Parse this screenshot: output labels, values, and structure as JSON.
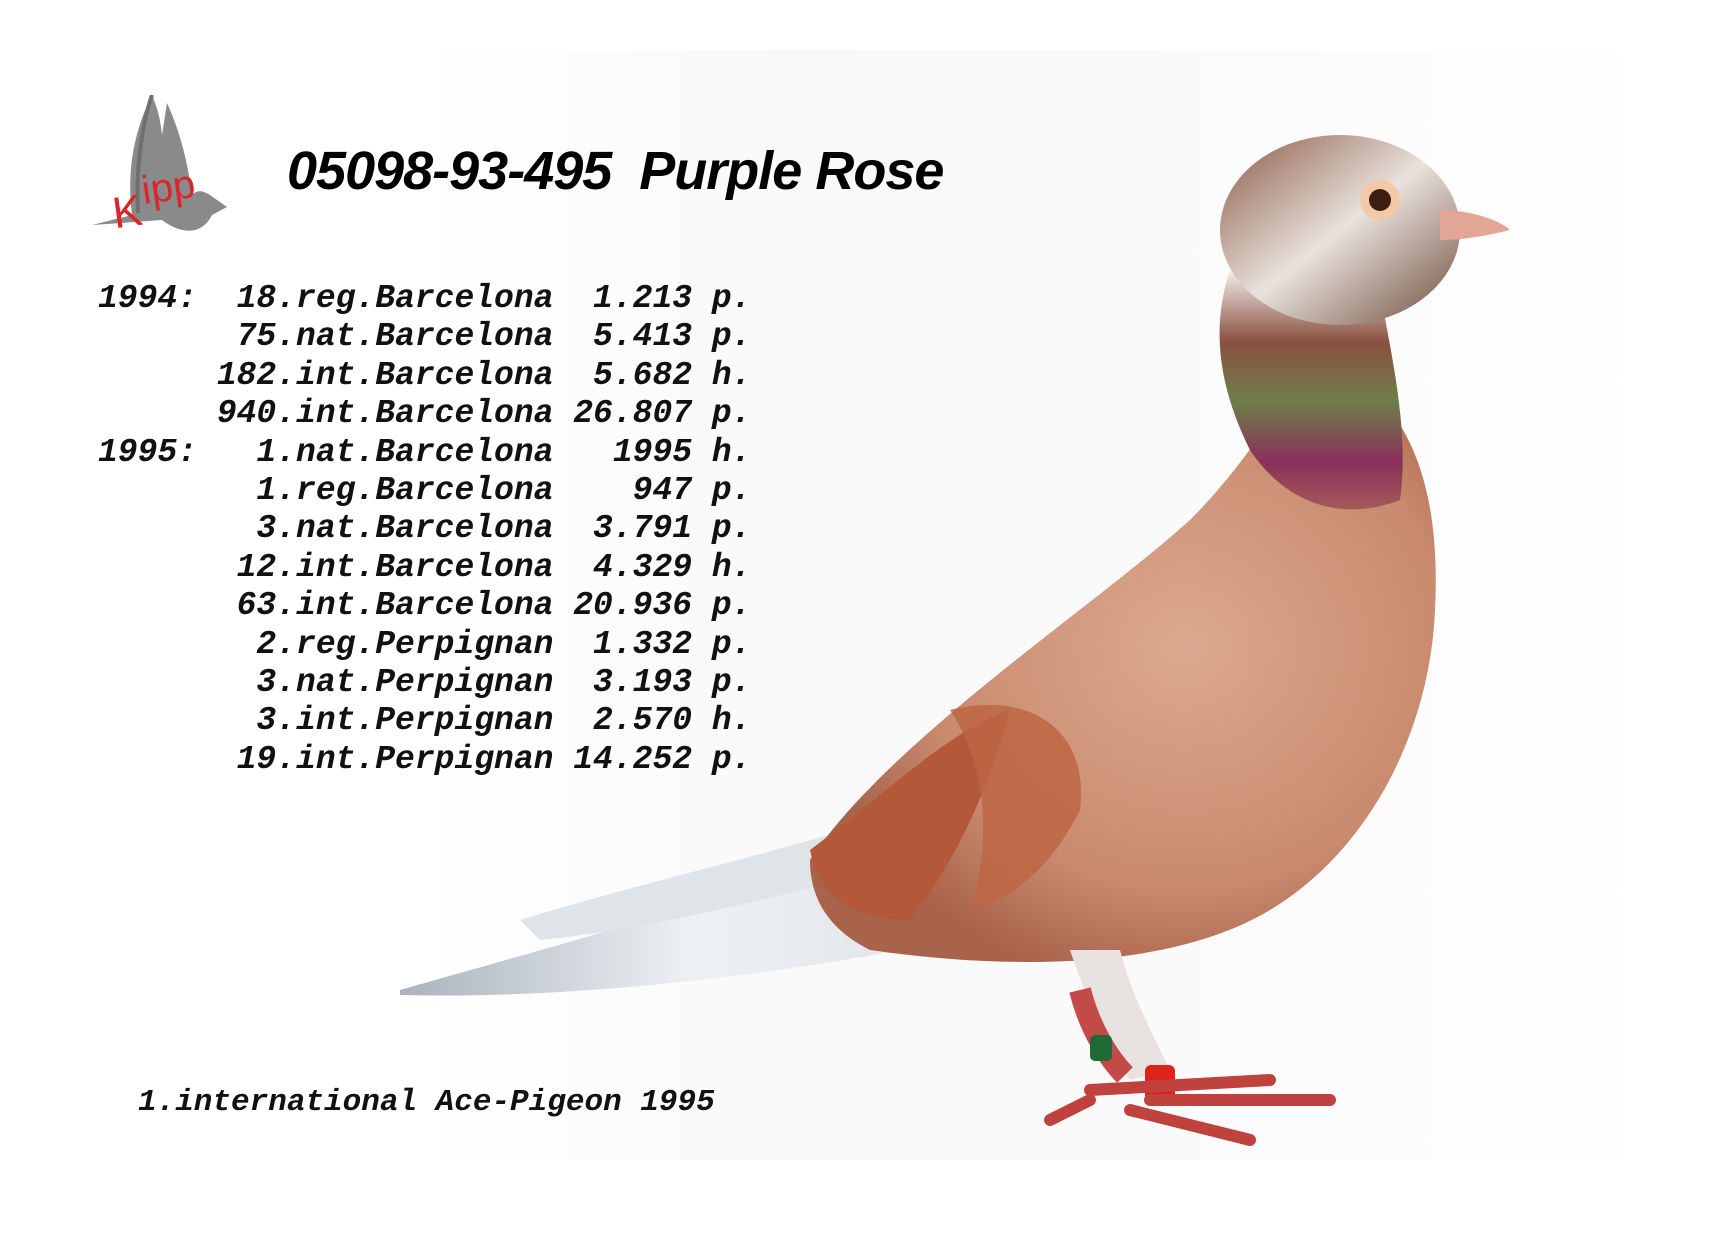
{
  "logo": {
    "text": "Kipp",
    "colors": {
      "bird": "#8a8a8a",
      "letters": "#d9252b"
    }
  },
  "title": "05098-93-495  Purple Rose",
  "results": [
    {
      "year": "1994:",
      "placing": "18.reg.Barcelona",
      "count": "1.213",
      "unit": "p."
    },
    {
      "year": "",
      "placing": "75.nat.Barcelona",
      "count": "5.413",
      "unit": "p."
    },
    {
      "year": "",
      "placing": "182.int.Barcelona",
      "count": "5.682",
      "unit": "h."
    },
    {
      "year": "",
      "placing": "940.int.Barcelona",
      "count": "26.807",
      "unit": "p."
    },
    {
      "year": "1995:",
      "placing": "1.nat.Barcelona",
      "count": "1995",
      "unit": "h."
    },
    {
      "year": "",
      "placing": "1.reg.Barcelona",
      "count": "947",
      "unit": "p."
    },
    {
      "year": "",
      "placing": "3.nat.Barcelona",
      "count": "3.791",
      "unit": "p."
    },
    {
      "year": "",
      "placing": "12.int.Barcelona",
      "count": "4.329",
      "unit": "h."
    },
    {
      "year": "",
      "placing": "63.int.Barcelona",
      "count": "20.936",
      "unit": "p."
    },
    {
      "year": "",
      "placing": "2.reg.Perpignan",
      "count": "1.332",
      "unit": "p."
    },
    {
      "year": "",
      "placing": "3.nat.Perpignan",
      "count": "3.193",
      "unit": "p."
    },
    {
      "year": "",
      "placing": "3.int.Perpignan",
      "count": "2.570",
      "unit": "h."
    },
    {
      "year": "",
      "placing": "19.int.Perpignan",
      "count": "14.252",
      "unit": "p."
    }
  ],
  "footer": "1.international Ace-Pigeon 1995",
  "photo": {
    "subject": "pigeon",
    "colors": {
      "body": "#c98a6e",
      "neck": "#8a2f5a",
      "tail": "#e9eef2"
    }
  }
}
